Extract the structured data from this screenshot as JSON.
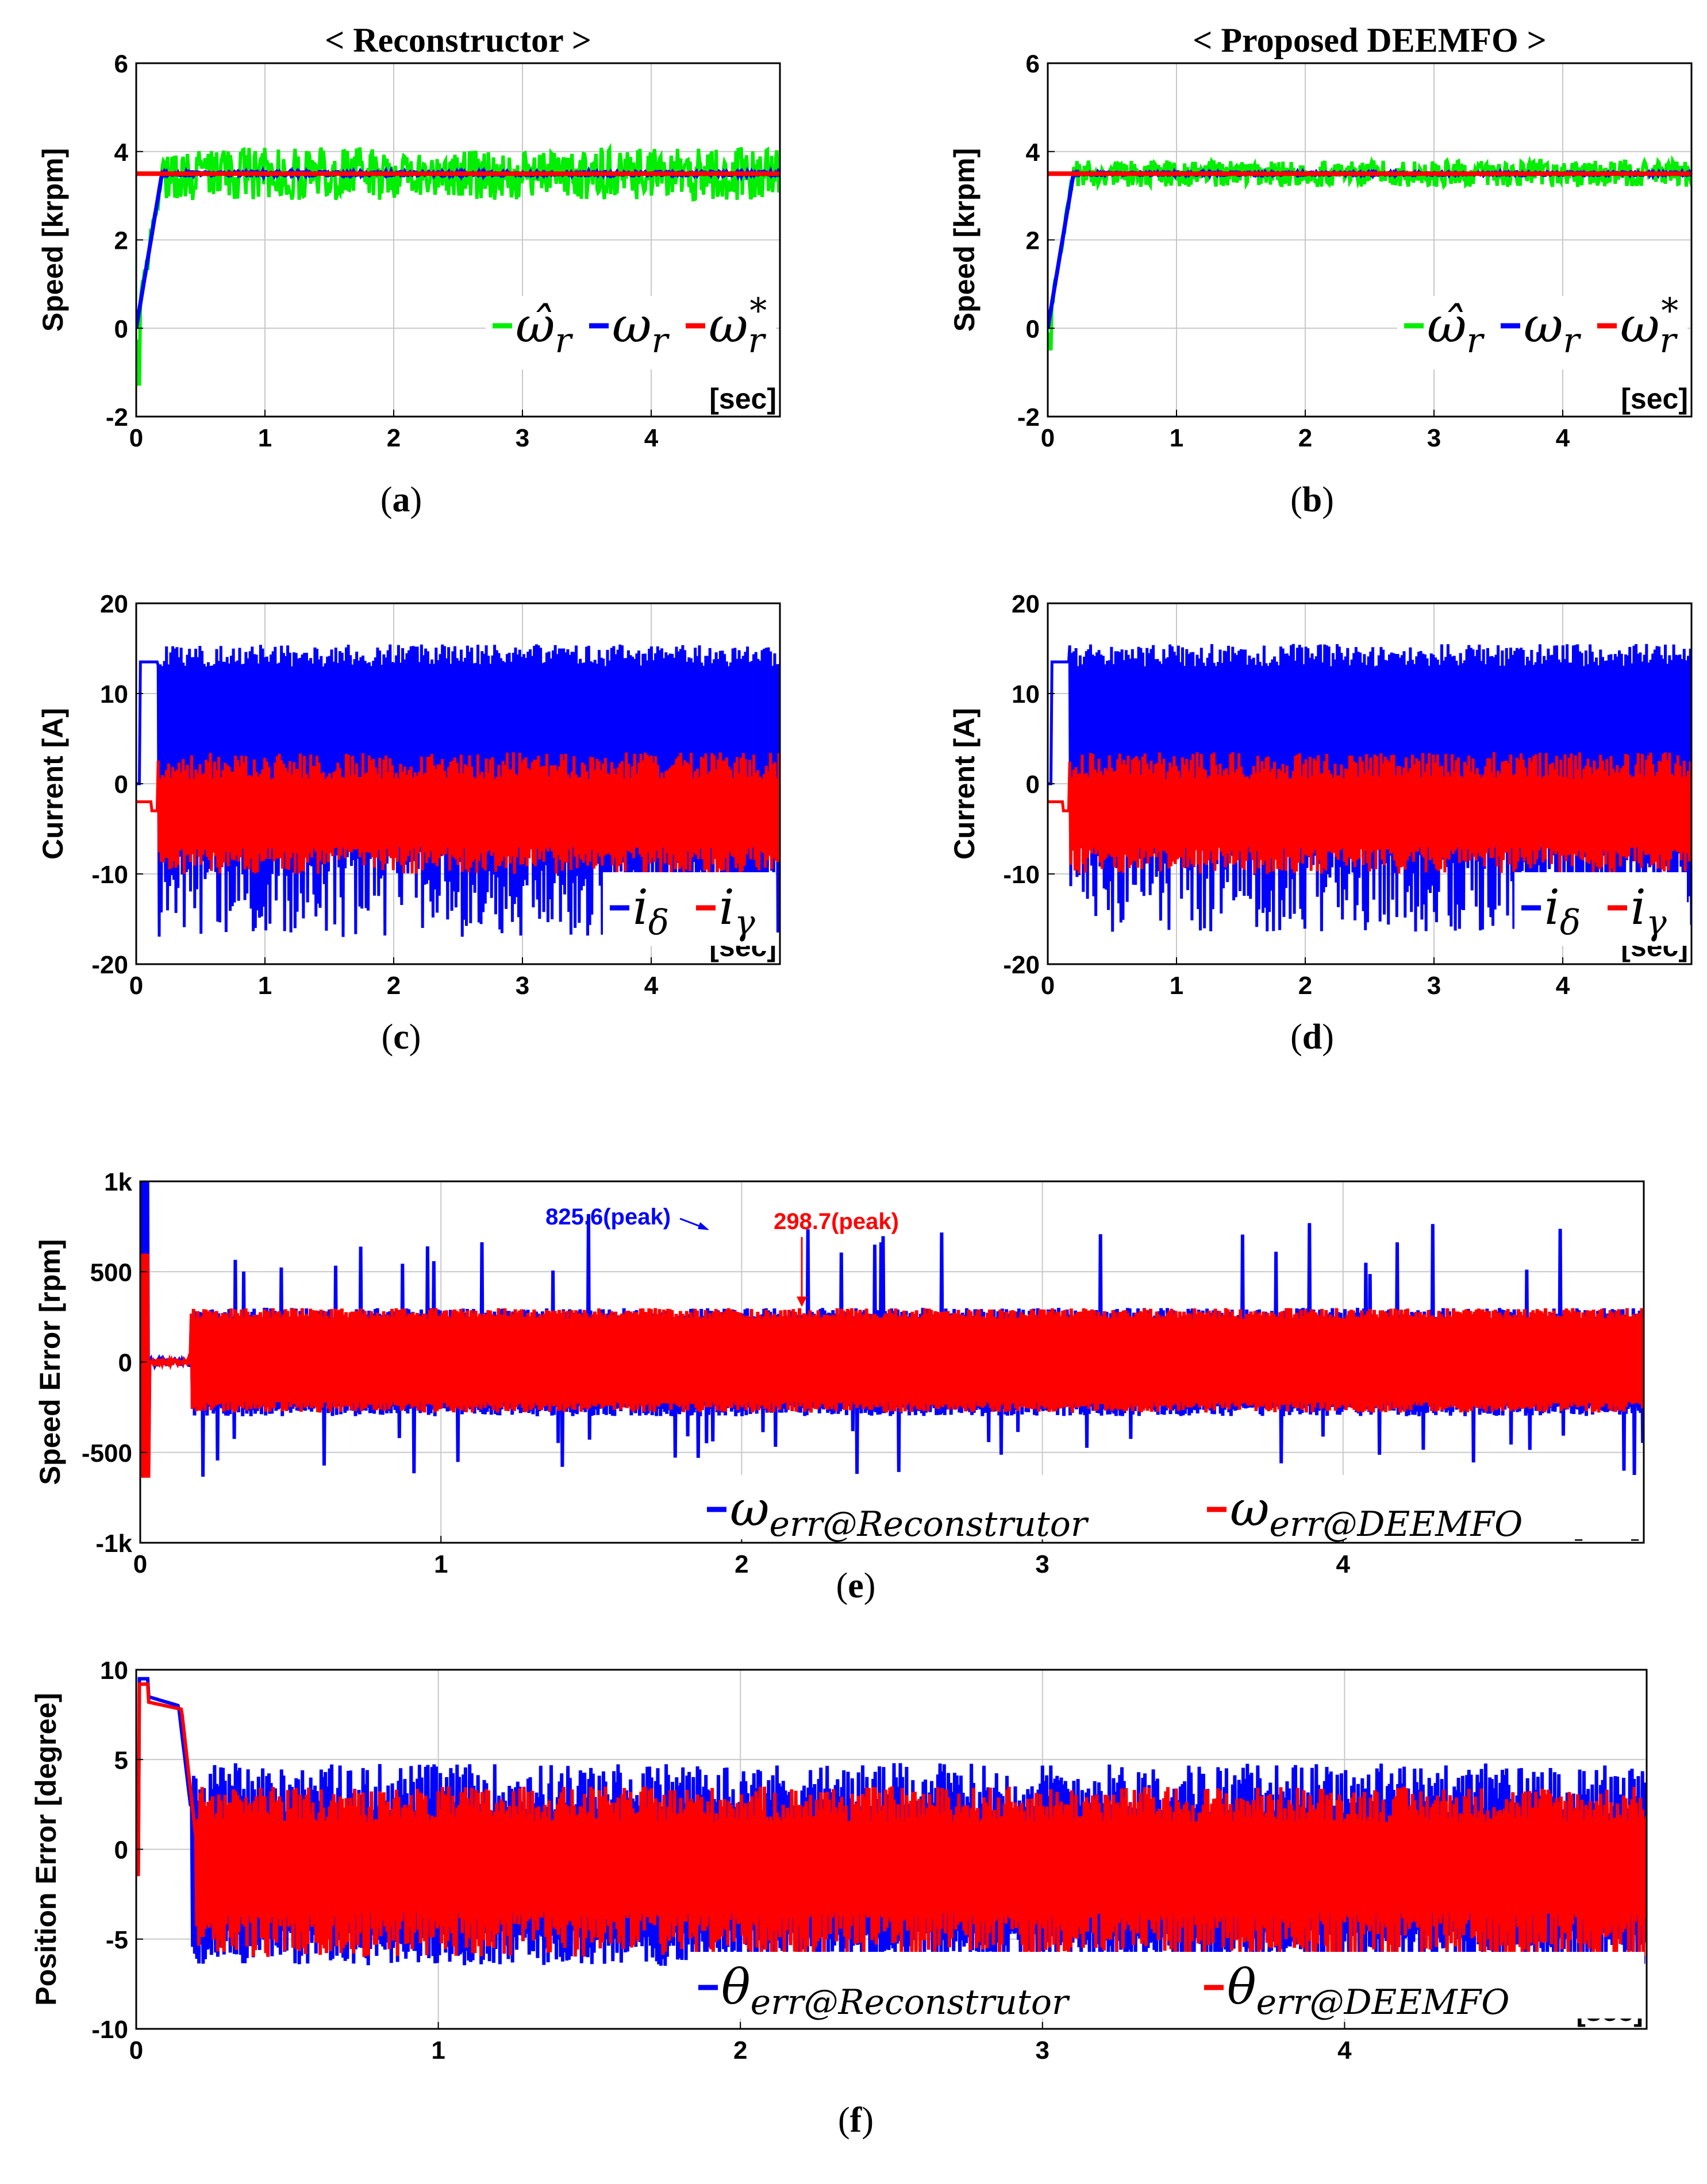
{
  "figure": {
    "captions": [
      "a",
      "b",
      "c",
      "d",
      "e",
      "f"
    ]
  },
  "colors": {
    "estimated": "#00ee00",
    "measured": "#0000ff",
    "reference": "#ff0000",
    "reconstructor": "#0000ff",
    "deemfo": "#ff0000",
    "grid": "#c8c8c8"
  },
  "chart_data": [
    {
      "id": "a",
      "type": "line",
      "title": "< Reconstructor >",
      "ylabel": "Speed [krpm]",
      "xunit": "[sec]",
      "xlim": [
        0,
        5
      ],
      "ylim": [
        -2,
        6
      ],
      "xticks": [
        0,
        1,
        2,
        3,
        4
      ],
      "yticks": [
        -2,
        0,
        2,
        4,
        6
      ],
      "legend_position": "bottom-right",
      "series": [
        {
          "name": "ω̂_r",
          "role": "estimated",
          "start": 0,
          "ramp_end_time": 0.2,
          "steady": 3.5,
          "ripple": 0.6,
          "initial_dip": -1.3
        },
        {
          "name": "ω_r",
          "role": "measured",
          "start": 0,
          "ramp_end_time": 0.2,
          "steady": 3.5,
          "ripple": 0.08
        },
        {
          "name": "ω_r*",
          "role": "reference",
          "constant": 3.5
        }
      ]
    },
    {
      "id": "b",
      "type": "line",
      "title": "< Proposed DEEMFO >",
      "ylabel": "Speed [krpm]",
      "xunit": "[sec]",
      "xlim": [
        0,
        5
      ],
      "ylim": [
        -2,
        6
      ],
      "xticks": [
        0,
        1,
        2,
        3,
        4
      ],
      "yticks": [
        -2,
        0,
        2,
        4,
        6
      ],
      "legend_position": "bottom-right",
      "series": [
        {
          "name": "ω̂_r",
          "role": "estimated",
          "start": 0,
          "ramp_end_time": 0.2,
          "steady": 3.5,
          "ripple": 0.3,
          "initial_dip": -0.5
        },
        {
          "name": "ω_r",
          "role": "measured",
          "start": 0,
          "ramp_end_time": 0.2,
          "steady": 3.5,
          "ripple": 0.06
        },
        {
          "name": "ω_r*",
          "role": "reference",
          "constant": 3.5
        }
      ]
    },
    {
      "id": "c",
      "type": "line",
      "ylabel": "Current [A]",
      "xunit": "[sec]",
      "xlim": [
        0,
        5
      ],
      "ylim": [
        -20,
        20
      ],
      "xticks": [
        0,
        1,
        2,
        3,
        4
      ],
      "yticks": [
        -20,
        -10,
        0,
        10,
        20
      ],
      "legend_position": "bottom-right",
      "series": [
        {
          "name": "i_δ",
          "role": "reconstructor",
          "startup_level": 13.5,
          "startup_end": 0.17,
          "band": [
            -17,
            15.5
          ]
        },
        {
          "name": "i_γ",
          "role": "deemfo",
          "startup_level": -2,
          "startup_end": 0.17,
          "band": [
            -10,
            3.5
          ]
        }
      ]
    },
    {
      "id": "d",
      "type": "line",
      "ylabel": "Current [A]",
      "xunit": "[sec]",
      "xlim": [
        0,
        5
      ],
      "ylim": [
        -20,
        20
      ],
      "xticks": [
        0,
        1,
        2,
        3,
        4
      ],
      "yticks": [
        -20,
        -10,
        0,
        10,
        20
      ],
      "legend_position": "bottom-right",
      "series": [
        {
          "name": "i_δ",
          "role": "reconstructor",
          "startup_level": 13.5,
          "startup_end": 0.17,
          "band": [
            -16.5,
            15.5
          ]
        },
        {
          "name": "i_γ",
          "role": "deemfo",
          "startup_level": -2,
          "startup_end": 0.17,
          "band": [
            -10,
            3.5
          ]
        }
      ]
    },
    {
      "id": "e",
      "type": "line",
      "ylabel": "Speed Error [rpm]",
      "xunit": "[sec]",
      "xlim": [
        0,
        5
      ],
      "ylim": [
        -1000,
        1000
      ],
      "xticks": [
        0,
        1,
        2,
        3,
        4
      ],
      "yticks": [
        -1000,
        -500,
        0,
        500,
        1000
      ],
      "ytick_labels": [
        "-1k",
        "-500",
        "0",
        "500",
        "1k"
      ],
      "legend_position": "bottom-right",
      "annotations": [
        {
          "text": "825.6(peak)",
          "x": 1.9,
          "y": 825.6,
          "color": "#0000ff"
        },
        {
          "text": "298.7(peak)",
          "x": 2.2,
          "y": 298.7,
          "color": "#ff0000"
        }
      ],
      "series": [
        {
          "name": "ω_err@Reconstrutor",
          "role": "reconstructor",
          "initial_spike": 1000,
          "band": [
            -300,
            300
          ],
          "peaks_up": 825.6,
          "peaks_down": -650
        },
        {
          "name": "ω_err@DEEMFO",
          "role": "deemfo",
          "initial_spike": 600,
          "band": [
            -280,
            298.7
          ]
        }
      ]
    },
    {
      "id": "f",
      "type": "line",
      "ylabel": "Position Error [degree]",
      "xunit": "[sec]",
      "xlim": [
        0,
        5
      ],
      "ylim": [
        -10,
        10
      ],
      "xticks": [
        0,
        1,
        2,
        3,
        4
      ],
      "yticks": [
        -10,
        -5,
        0,
        5,
        10
      ],
      "legend_position": "bottom-right",
      "series": [
        {
          "name": "θ_err@Reconstrutor",
          "role": "reconstructor",
          "initial_peak": 9.5,
          "plateau": 8.0,
          "plateau_end": 0.18,
          "band": [
            -6.5,
            4.8
          ]
        },
        {
          "name": "θ_err@DEEMFO",
          "role": "deemfo",
          "initial_peak": 9.2,
          "plateau": 7.8,
          "plateau_end": 0.2,
          "band": [
            -6,
            3.5
          ]
        }
      ]
    }
  ],
  "legends": {
    "speed": [
      "ω̂",
      "r",
      "ω",
      "r",
      "ω",
      "r",
      "*"
    ],
    "current": [
      "i",
      "δ",
      "i",
      "γ"
    ],
    "speed_error": [
      "ω",
      "err@Reconstrutor",
      "ω",
      "err@DEEMFO"
    ],
    "position_error": [
      "θ",
      "err@Reconstrutor",
      "θ",
      "err@DEEMFO"
    ]
  }
}
